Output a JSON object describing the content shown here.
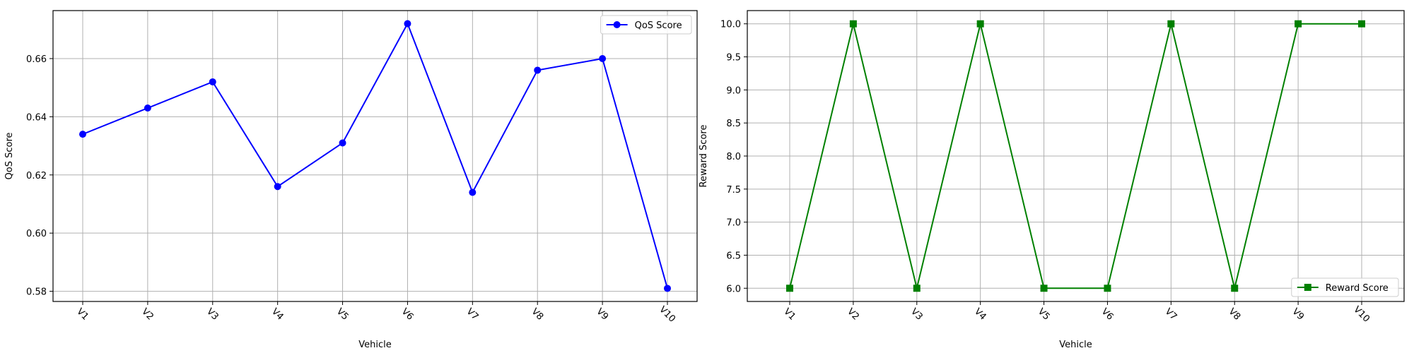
{
  "chart_data": [
    {
      "type": "line",
      "categories": [
        "V1",
        "V2",
        "V3",
        "V4",
        "V5",
        "V6",
        "V7",
        "V8",
        "V9",
        "V10"
      ],
      "series": [
        {
          "name": "QoS Score",
          "values": [
            0.634,
            0.643,
            0.652,
            0.616,
            0.631,
            0.672,
            0.614,
            0.656,
            0.66,
            0.581
          ],
          "color": "#0000ff",
          "marker": "circle"
        }
      ],
      "xlabel": "Vehicle",
      "ylabel": "QoS Score",
      "ylim": [
        0.5765,
        0.6765
      ],
      "yticks": [
        0.58,
        0.6,
        0.62,
        0.64,
        0.66
      ],
      "ytick_labels": [
        "0.58",
        "0.60",
        "0.62",
        "0.64",
        "0.66"
      ],
      "grid": true,
      "legend": "upper right"
    },
    {
      "type": "line",
      "categories": [
        "V1",
        "V2",
        "V3",
        "V4",
        "V5",
        "V6",
        "V7",
        "V8",
        "V9",
        "V10"
      ],
      "series": [
        {
          "name": "Reward Score",
          "values": [
            6,
            10,
            6,
            10,
            6,
            6,
            10,
            6,
            10,
            10
          ],
          "color": "#008000",
          "marker": "square"
        }
      ],
      "xlabel": "Vehicle",
      "ylabel": "Reward Score",
      "ylim": [
        5.8,
        10.2
      ],
      "yticks": [
        6.0,
        6.5,
        7.0,
        7.5,
        8.0,
        8.5,
        9.0,
        9.5,
        10.0
      ],
      "ytick_labels": [
        "6.0",
        "6.5",
        "7.0",
        "7.5",
        "8.0",
        "8.5",
        "9.0",
        "9.5",
        "10.0"
      ],
      "grid": true,
      "legend": "lower right"
    }
  ]
}
